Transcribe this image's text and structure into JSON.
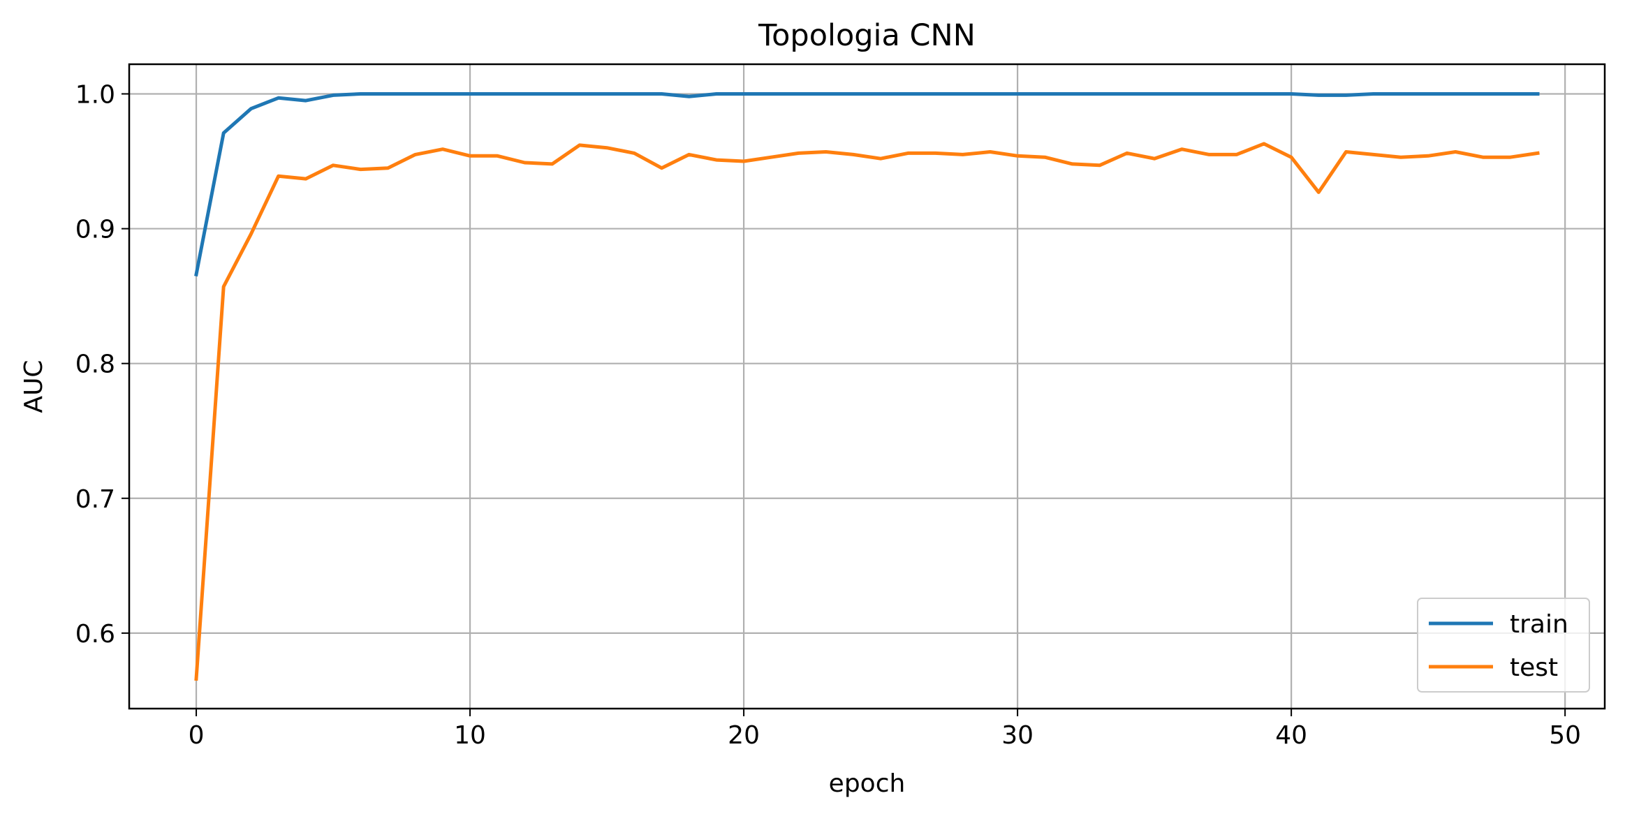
{
  "chart_data": {
    "type": "line",
    "title": "Topologia CNN",
    "xlabel": "epoch",
    "ylabel": "AUC",
    "xlim": [
      -2.45,
      51.45
    ],
    "ylim": [
      0.544,
      1.022
    ],
    "xticks": [
      0,
      10,
      20,
      30,
      40,
      50
    ],
    "yticks": [
      0.6,
      0.7,
      0.8,
      0.9,
      1.0
    ],
    "xtick_labels": [
      "0",
      "10",
      "20",
      "30",
      "40",
      "50"
    ],
    "ytick_labels": [
      "0.6",
      "0.7",
      "0.8",
      "0.9",
      "1.0"
    ],
    "grid": true,
    "legend_position": "lower right",
    "x": [
      0,
      1,
      2,
      3,
      4,
      5,
      6,
      7,
      8,
      9,
      10,
      11,
      12,
      13,
      14,
      15,
      16,
      17,
      18,
      19,
      20,
      21,
      22,
      23,
      24,
      25,
      26,
      27,
      28,
      29,
      30,
      31,
      32,
      33,
      34,
      35,
      36,
      37,
      38,
      39,
      40,
      41,
      42,
      43,
      44,
      45,
      46,
      47,
      48,
      49
    ],
    "series": [
      {
        "name": "train",
        "color": "#1f77b4",
        "values": [
          0.866,
          0.971,
          0.989,
          0.997,
          0.995,
          0.999,
          1.0,
          1.0,
          1.0,
          1.0,
          1.0,
          1.0,
          1.0,
          1.0,
          1.0,
          1.0,
          1.0,
          1.0,
          0.998,
          1.0,
          1.0,
          1.0,
          1.0,
          1.0,
          1.0,
          1.0,
          1.0,
          1.0,
          1.0,
          1.0,
          1.0,
          1.0,
          1.0,
          1.0,
          1.0,
          1.0,
          1.0,
          1.0,
          1.0,
          1.0,
          1.0,
          0.999,
          0.999,
          1.0,
          1.0,
          1.0,
          1.0,
          1.0,
          1.0,
          1.0
        ]
      },
      {
        "name": "test",
        "color": "#ff7f0e",
        "values": [
          0.566,
          0.857,
          0.896,
          0.939,
          0.937,
          0.947,
          0.944,
          0.945,
          0.955,
          0.959,
          0.954,
          0.954,
          0.949,
          0.948,
          0.962,
          0.96,
          0.956,
          0.945,
          0.955,
          0.951,
          0.95,
          0.953,
          0.956,
          0.957,
          0.955,
          0.952,
          0.956,
          0.956,
          0.955,
          0.957,
          0.954,
          0.953,
          0.948,
          0.947,
          0.956,
          0.952,
          0.959,
          0.955,
          0.955,
          0.963,
          0.953,
          0.927,
          0.957,
          0.955,
          0.953,
          0.954,
          0.957,
          0.953,
          0.953,
          0.956
        ]
      }
    ]
  }
}
